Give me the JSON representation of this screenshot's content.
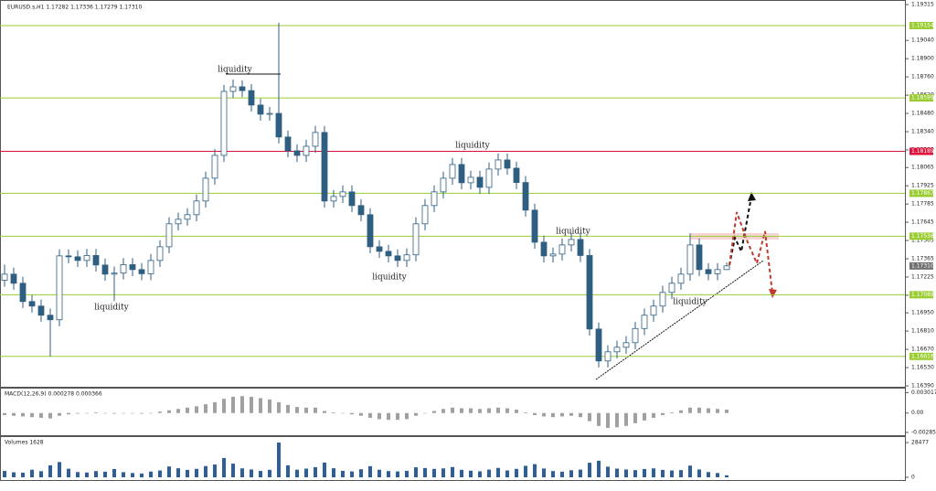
{
  "chart_data": [
    {
      "type": "candlestick",
      "title": "EURUSD.s,H1  1.17282 1.17336 1.17279 1.17310",
      "color": "#2f5f80",
      "open": [
        1.172,
        1.17247,
        1.17177,
        1.17037,
        1.17002,
        1.16932,
        1.16897,
        1.17387,
        1.1738,
        1.17352,
        1.1739,
        1.17317,
        1.17247,
        1.17255,
        1.1732,
        1.17282,
        1.1725,
        1.17352,
        1.17457,
        1.17633,
        1.17668,
        1.17703,
        1.17808,
        1.17983,
        1.18158,
        1.18649,
        1.18684,
        1.18655,
        1.18544,
        1.18474,
        1.1848,
        1.18299,
        1.18193,
        1.18158,
        1.18228,
        1.18334,
        1.17808,
        1.17843,
        1.17878,
        1.17773,
        1.17703,
        1.17457,
        1.17422,
        1.17387,
        1.17352,
        1.17395,
        1.17633,
        1.17773,
        1.17878,
        1.17983,
        1.18088,
        1.17948,
        1.1799,
        1.17913,
        1.18053,
        1.18123,
        1.1806,
        1.1795,
        1.17738,
        1.17492,
        1.17387,
        1.17401,
        1.17471,
        1.17513,
        1.1739,
        1.16826,
        1.16581,
        1.16651,
        1.16686,
        1.16721,
        1.1683,
        1.16932,
        1.17002,
        1.17107,
        1.17177,
        1.17247,
        1.17471,
        1.17282,
        1.1725,
        1.17282
      ],
      "high": [
        1.1732,
        1.17297,
        1.17227,
        1.17087,
        1.17052,
        1.16982,
        1.17437,
        1.17437,
        1.1743,
        1.1744,
        1.1744,
        1.17367,
        1.17305,
        1.1737,
        1.1737,
        1.17332,
        1.17402,
        1.17507,
        1.17683,
        1.17718,
        1.17753,
        1.17858,
        1.18033,
        1.18208,
        1.18699,
        1.1874,
        1.18734,
        1.18705,
        1.18594,
        1.1853,
        1.19175,
        1.18349,
        1.18243,
        1.18278,
        1.18384,
        1.18384,
        1.17893,
        1.17928,
        1.17928,
        1.17823,
        1.17753,
        1.17507,
        1.17472,
        1.17437,
        1.17445,
        1.17683,
        1.17823,
        1.17928,
        1.18033,
        1.18138,
        1.18138,
        1.1804,
        1.1804,
        1.18103,
        1.18173,
        1.18173,
        1.1811,
        1.18,
        1.17788,
        1.17542,
        1.17451,
        1.17521,
        1.17563,
        1.17563,
        1.1744,
        1.16876,
        1.16701,
        1.16736,
        1.16771,
        1.1688,
        1.16982,
        1.17052,
        1.17157,
        1.17227,
        1.17297,
        1.1756,
        1.17521,
        1.17332,
        1.17332,
        1.17336
      ],
      "low": [
        1.1715,
        1.17127,
        1.16987,
        1.16952,
        1.16882,
        1.16616,
        1.16847,
        1.1733,
        1.17302,
        1.17302,
        1.17267,
        1.17197,
        1.1704,
        1.17205,
        1.17232,
        1.172,
        1.172,
        1.17302,
        1.17407,
        1.17583,
        1.17618,
        1.17653,
        1.17758,
        1.17933,
        1.18108,
        1.18599,
        1.18605,
        1.18494,
        1.18424,
        1.18424,
        1.18249,
        1.18143,
        1.18108,
        1.18108,
        1.18178,
        1.17758,
        1.17758,
        1.17793,
        1.17723,
        1.17653,
        1.17407,
        1.17372,
        1.17337,
        1.17302,
        1.17302,
        1.17345,
        1.17583,
        1.17723,
        1.17828,
        1.17933,
        1.17898,
        1.17898,
        1.17863,
        1.17863,
        1.18003,
        1.1801,
        1.179,
        1.17688,
        1.17442,
        1.17337,
        1.17337,
        1.17351,
        1.17421,
        1.1734,
        1.16776,
        1.16531,
        1.16531,
        1.16601,
        1.16636,
        1.16671,
        1.1678,
        1.16882,
        1.16952,
        1.17057,
        1.17127,
        1.17197,
        1.17232,
        1.172,
        1.172,
        1.17279
      ],
      "close": [
        1.17247,
        1.17177,
        1.17037,
        1.17002,
        1.16932,
        1.16897,
        1.17387,
        1.1738,
        1.17352,
        1.1739,
        1.17317,
        1.17247,
        1.17255,
        1.1732,
        1.17282,
        1.1725,
        1.17352,
        1.17457,
        1.17633,
        1.17668,
        1.17703,
        1.17808,
        1.17983,
        1.18158,
        1.18649,
        1.18684,
        1.18655,
        1.18544,
        1.18474,
        1.1848,
        1.18299,
        1.18193,
        1.18158,
        1.18228,
        1.18334,
        1.17808,
        1.17843,
        1.17878,
        1.17773,
        1.17703,
        1.17457,
        1.17422,
        1.17387,
        1.17352,
        1.17395,
        1.17633,
        1.17773,
        1.17878,
        1.17983,
        1.18088,
        1.17948,
        1.1799,
        1.17913,
        1.18053,
        1.18123,
        1.1806,
        1.1795,
        1.17738,
        1.17492,
        1.17387,
        1.17401,
        1.17471,
        1.17513,
        1.1739,
        1.16826,
        1.16581,
        1.16651,
        1.16686,
        1.16721,
        1.1683,
        1.16932,
        1.17002,
        1.17107,
        1.17177,
        1.17247,
        1.17471,
        1.17282,
        1.1725,
        1.17282,
        1.1731
      ],
      "ylim": [
        1.1639,
        1.19315
      ],
      "yticks": [
        1.19315,
        {
          "value": 1.1904,
          "label": "1.19040"
        },
        {
          "value": 1.189,
          "label": "1.18900"
        },
        {
          "value": 1.1876,
          "label": "1.18760"
        },
        {
          "value": 1.1862,
          "label": "1.18620"
        },
        {
          "value": 1.1848,
          "label": "1.18480"
        },
        {
          "value": 1.1834,
          "label": "1.18340"
        },
        {
          "value": 1.182,
          "label": "1.18200"
        },
        1.18065,
        1.17925,
        1.17785,
        1.17645,
        1.17505,
        1.17365,
        1.17225,
        1.17085,
        {
          "value": 1.1695,
          "label": "1.16950"
        },
        {
          "value": 1.1681,
          "label": "1.16810"
        },
        {
          "value": 1.1667,
          "label": "1.16670"
        },
        {
          "value": 1.1653,
          "label": "1.16530"
        },
        {
          "value": 1.1639,
          "label": "1.16390"
        }
      ],
      "levels": [
        {
          "value": 1.19154,
          "color": "#9acd32"
        },
        {
          "value": 1.18599,
          "color": "#9acd32"
        },
        {
          "value": 1.18189,
          "color": "#dc143c"
        },
        {
          "value": 1.17867,
          "color": "#9acd32"
        },
        {
          "value": 1.17538,
          "color": "#9acd32"
        },
        {
          "value": 1.17089,
          "color": "#9acd32"
        },
        {
          "value": 1.16616,
          "color": "#9acd32"
        }
      ],
      "current_price": {
        "value": 1.1731,
        "label": "1.17310"
      },
      "annotations": [
        "liquidity",
        "liquidity",
        "liquidity",
        "liquidity",
        "liquidity",
        "liquidity"
      ]
    },
    {
      "type": "bar",
      "title": "MACD(12,26,9) 0.000278 0.000366",
      "color": "#a0a0a0",
      "values": [
        -0.0003,
        -0.0004,
        -0.0005,
        -0.0006,
        -0.0007,
        -0.0008,
        -0.0004,
        -0.0002,
        -0.0001,
        0.0,
        0.0001,
        0.0,
        -0.0001,
        0.0,
        0.0,
        -0.0001,
        0.0,
        0.0002,
        0.0004,
        0.0006,
        0.0008,
        0.001,
        0.0013,
        0.0016,
        0.0021,
        0.0024,
        0.0025,
        0.0024,
        0.0022,
        0.002,
        0.0016,
        0.0012,
        0.0009,
        0.0008,
        0.0008,
        0.0003,
        0.0001,
        0.0,
        -0.0002,
        -0.0004,
        -0.0007,
        -0.0009,
        -0.001,
        -0.001,
        -0.0009,
        -0.0004,
        0.0,
        0.0003,
        0.0006,
        0.0008,
        0.0007,
        0.0007,
        0.0006,
        0.0007,
        0.0008,
        0.0007,
        0.0005,
        0.0001,
        -0.0003,
        -0.0005,
        -0.0006,
        -0.0005,
        -0.0004,
        -0.0006,
        -0.0012,
        -0.0019,
        -0.0022,
        -0.0021,
        -0.0019,
        -0.0015,
        -0.0011,
        -0.0007,
        -0.0003,
        0.0001,
        0.0004,
        0.0008,
        0.0008,
        0.0007,
        0.0006,
        0.0005
      ],
      "ylim": [
        -0.003,
        0.0032
      ],
      "yticks": [
        0.003017,
        {
          "value": 0,
          "label": "0.00"
        },
        -0.002859
      ]
    },
    {
      "type": "bar",
      "title": "Volumes 1628",
      "color": "#2f5f9a",
      "values": [
        5200,
        4100,
        3800,
        6200,
        5000,
        9800,
        12500,
        7000,
        4300,
        3900,
        5100,
        4600,
        6800,
        4200,
        3500,
        3100,
        4700,
        5600,
        8900,
        7400,
        6100,
        6900,
        9200,
        10500,
        15800,
        11200,
        7300,
        6400,
        5200,
        6100,
        28477,
        9800,
        6200,
        7100,
        8300,
        12100,
        7400,
        5300,
        4800,
        6600,
        9100,
        6200,
        5100,
        4800,
        5300,
        8200,
        7600,
        6900,
        7300,
        8400,
        6100,
        5400,
        4900,
        6300,
        7700,
        5600,
        6900,
        9400,
        10800,
        7200,
        5100,
        4600,
        5800,
        6300,
        11900,
        13600,
        8700,
        7100,
        6400,
        5900,
        6800,
        7300,
        6100,
        5600,
        5900,
        9600,
        6400,
        4300,
        3500,
        1628
      ],
      "ylim": [
        0,
        30000
      ],
      "yticks": [
        28477,
        0
      ]
    }
  ]
}
